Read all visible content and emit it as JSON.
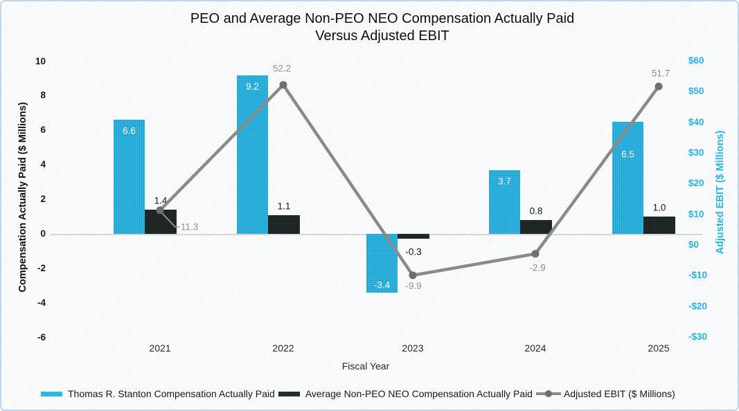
{
  "title": {
    "line1": "PEO and Average Non-PEO NEO Compensation Actually Paid",
    "line2": "Versus Adjusted EBIT"
  },
  "axes": {
    "left": {
      "title": "Compensation Actually Paid ($ Millions)",
      "ticks": [
        "10",
        "8",
        "6",
        "4",
        "2",
        "0",
        "-2",
        "-4",
        "-6"
      ]
    },
    "right": {
      "title": "Adjusted EBIT ($ Millions)",
      "ticks": [
        "$60",
        "$50",
        "$40",
        "$30",
        "$20",
        "$10",
        "$0",
        "-$10",
        "-$20",
        "-$30"
      ]
    },
    "x": {
      "title": "Fiscal Year",
      "categories": [
        "2021",
        "2022",
        "2023",
        "2024",
        "2025"
      ]
    }
  },
  "chart_data": {
    "type": "combo",
    "categories": [
      "2021",
      "2022",
      "2023",
      "2024",
      "2025"
    ],
    "series": [
      {
        "name": "Thomas R. Stanton Compensation Actually Paid",
        "type": "bar",
        "axis": "left",
        "values": [
          6.6,
          9.2,
          -3.4,
          3.7,
          6.5
        ],
        "color": "#2fb6e2"
      },
      {
        "name": "Average Non-PEO NEO Compensation Actually Paid",
        "type": "bar",
        "axis": "left",
        "values": [
          1.4,
          1.1,
          -0.3,
          0.8,
          1.0
        ],
        "color": "#232d2d"
      },
      {
        "name": "Adjusted EBIT ($ Millions)",
        "type": "line",
        "axis": "right",
        "values": [
          11.3,
          52.2,
          -9.9,
          -2.9,
          51.7
        ],
        "color": "#8a8a8a"
      }
    ],
    "title": "PEO and Average Non-PEO NEO Compensation Actually Paid Versus Adjusted EBIT",
    "xlabel": "Fiscal Year",
    "ylabel_left": "Compensation Actually Paid ($ Millions)",
    "ylabel_right": "Adjusted EBIT ($ Millions)",
    "ylim_left": [
      -6,
      10
    ],
    "ylim_right": [
      -30,
      60
    ],
    "grid": false,
    "legend_position": "bottom"
  },
  "legend": {
    "items": [
      {
        "swatch": "bar",
        "label": "Thomas R. Stanton Compensation Actually Paid"
      },
      {
        "swatch": "bar2",
        "label": "Average Non-PEO NEO Compensation Actually Paid"
      },
      {
        "swatch": "line",
        "label": "Adjusted EBIT ($ Millions)"
      }
    ]
  },
  "colors": {
    "peo_bar": "#2fb6e2",
    "neo_bar": "#232d2d",
    "ebit_line": "#8a8a8a",
    "ebit_marker": "#6f6f6f",
    "line_label": "#8d9093",
    "right_axis_text": "#27b2e3",
    "zero_line": "#d7d7d7",
    "frame_border": "#bdd6ea"
  }
}
